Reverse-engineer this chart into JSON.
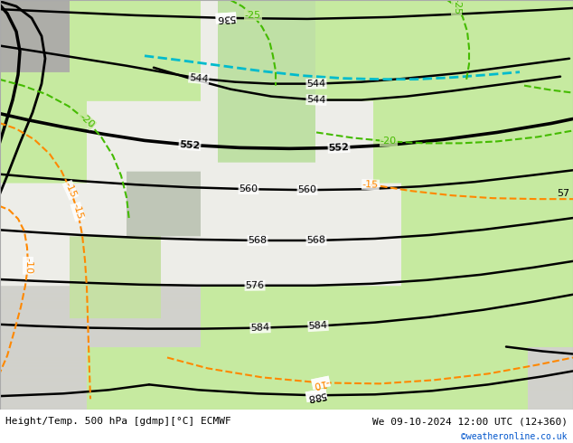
{
  "title_left": "Height/Temp. 500 hPa [gdmp][°C] ECMWF",
  "title_right": "We 09-10-2024 12:00 UTC (12+360)",
  "watermark": "©weatheronline.co.uk",
  "fig_width": 6.34,
  "fig_height": 4.9,
  "dpi": 100,
  "footer_bg": "#ffffff",
  "footer_text_color": "#000000",
  "watermark_color": "#0055cc",
  "footer_fontsize": 8,
  "map_bg_green": [
    0.78,
    0.92,
    0.63
  ],
  "map_bg_gray": [
    0.82,
    0.82,
    0.8
  ],
  "map_bg_white": [
    0.93,
    0.93,
    0.91
  ],
  "map_bg_darkgray": [
    0.72,
    0.72,
    0.7
  ],
  "black_lw": 1.8,
  "thick_lw": 2.6,
  "temp_lw": 1.5,
  "height_contours": {
    "536": {
      "lw": 1.8,
      "bold": false
    },
    "544": {
      "lw": 1.8,
      "bold": false
    },
    "552": {
      "lw": 2.6,
      "bold": true
    },
    "560": {
      "lw": 1.8,
      "bold": false
    },
    "568": {
      "lw": 1.8,
      "bold": false
    },
    "576": {
      "lw": 1.8,
      "bold": false
    },
    "584": {
      "lw": 1.8,
      "bold": false
    },
    "588": {
      "lw": 1.8,
      "bold": false
    }
  }
}
